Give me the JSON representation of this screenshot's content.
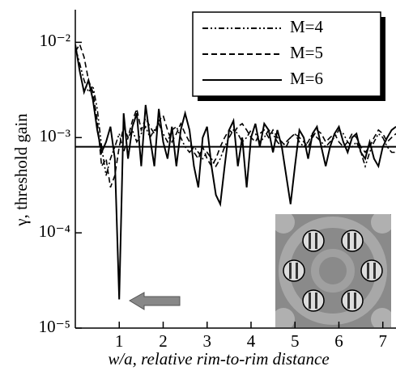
{
  "chart_data": {
    "type": "line",
    "x_label": "w/a, relative rim-to-rim distance",
    "y_label": "γ, threshold gain",
    "log_y": true,
    "xlim": [
      0,
      7.3
    ],
    "ylim": [
      1e-05,
      0.022
    ],
    "xticks": [
      1,
      2,
      3,
      4,
      5,
      6,
      7
    ],
    "yticks": [
      {
        "value": 1e-05,
        "label": "10⁻⁵"
      },
      {
        "value": 0.0001,
        "label": "10⁻⁴"
      },
      {
        "value": 0.001,
        "label": "10⁻³"
      },
      {
        "value": 0.01,
        "label": "10⁻²"
      }
    ],
    "threshold_line": 0.0008,
    "legend": "upper right",
    "x": [
      0,
      0.1,
      0.2,
      0.3,
      0.4,
      0.5,
      0.6,
      0.7,
      0.8,
      0.9,
      1.0,
      1.1,
      1.2,
      1.3,
      1.4,
      1.5,
      1.6,
      1.7,
      1.8,
      1.9,
      2.0,
      2.1,
      2.2,
      2.3,
      2.4,
      2.5,
      2.6,
      2.7,
      2.8,
      2.9,
      3.0,
      3.1,
      3.2,
      3.3,
      3.4,
      3.5,
      3.6,
      3.7,
      3.8,
      3.9,
      4.0,
      4.1,
      4.2,
      4.3,
      4.4,
      4.5,
      4.6,
      4.7,
      4.8,
      4.9,
      5.0,
      5.1,
      5.2,
      5.3,
      5.4,
      5.5,
      5.6,
      5.7,
      5.8,
      5.9,
      6.0,
      6.1,
      6.2,
      6.3,
      6.4,
      6.5,
      6.6,
      6.7,
      6.8,
      6.9,
      7.0,
      7.1,
      7.2,
      7.3
    ],
    "series": [
      {
        "name": "M=4",
        "color": "#000000",
        "linestyle": "dashdotdot",
        "values": [
          0.009,
          0.006,
          0.004,
          0.003,
          0.0035,
          0.002,
          0.0008,
          0.0004,
          0.0006,
          0.0008,
          0.0011,
          0.0007,
          0.001,
          0.0012,
          0.0009,
          0.0011,
          0.0013,
          0.001,
          0.0012,
          0.0014,
          0.0011,
          0.0009,
          0.0012,
          0.0013,
          0.001,
          0.0008,
          0.0007,
          0.0008,
          0.0007,
          0.0006,
          0.0007,
          0.0006,
          0.0005,
          0.0006,
          0.0008,
          0.001,
          0.0012,
          0.0011,
          0.0009,
          0.001,
          0.0012,
          0.0011,
          0.0009,
          0.001,
          0.0012,
          0.0011,
          0.0009,
          0.0008,
          0.0009,
          0.001,
          0.0011,
          0.0009,
          0.0008,
          0.0009,
          0.0011,
          0.001,
          0.0009,
          0.0008,
          0.0009,
          0.001,
          0.0012,
          0.0011,
          0.0009,
          0.0008,
          0.0009,
          0.0007,
          0.0005,
          0.0007,
          0.0009,
          0.0011,
          0.001,
          0.0008,
          0.0007,
          0.0007
        ]
      },
      {
        "name": "M=5",
        "color": "#000000",
        "linestyle": "dashed",
        "values": [
          0.008,
          0.0095,
          0.007,
          0.004,
          0.003,
          0.0015,
          0.0005,
          0.0006,
          0.0003,
          0.0004,
          0.0008,
          0.0013,
          0.001,
          0.0015,
          0.002,
          0.0012,
          0.0016,
          0.0013,
          0.0011,
          0.0015,
          0.0017,
          0.0012,
          0.0009,
          0.0011,
          0.0014,
          0.0011,
          0.0009,
          0.0007,
          0.0006,
          0.0008,
          0.0006,
          0.0005,
          0.0006,
          0.0008,
          0.001,
          0.0012,
          0.0011,
          0.0013,
          0.0014,
          0.0012,
          0.001,
          0.0009,
          0.0011,
          0.0012,
          0.001,
          0.0012,
          0.001,
          0.0009,
          0.0008,
          0.001,
          0.0011,
          0.001,
          0.0009,
          0.0008,
          0.001,
          0.0012,
          0.0011,
          0.0009,
          0.001,
          0.0011,
          0.0009,
          0.0008,
          0.0009,
          0.0011,
          0.001,
          0.0008,
          0.0007,
          0.0008,
          0.001,
          0.0012,
          0.0011,
          0.0009,
          0.001,
          0.0011
        ]
      },
      {
        "name": "M=6",
        "color": "#000000",
        "linestyle": "solid",
        "values": [
          0.0095,
          0.005,
          0.003,
          0.004,
          0.0025,
          0.0012,
          0.0007,
          0.0009,
          0.0013,
          0.0006,
          2e-05,
          0.0018,
          0.0006,
          0.0013,
          0.0018,
          0.0005,
          0.0022,
          0.001,
          0.0005,
          0.002,
          0.0009,
          0.0006,
          0.0013,
          0.0005,
          0.0012,
          0.0018,
          0.0012,
          0.0005,
          0.0003,
          0.001,
          0.0013,
          0.0005,
          0.00025,
          0.0002,
          0.0005,
          0.0012,
          0.0015,
          0.0005,
          0.001,
          0.0003,
          0.001,
          0.0014,
          0.0008,
          0.0014,
          0.0012,
          0.0007,
          0.0012,
          0.0008,
          0.0004,
          0.0002,
          0.0005,
          0.0012,
          0.001,
          0.0006,
          0.0011,
          0.0013,
          0.0008,
          0.0005,
          0.0008,
          0.0011,
          0.0013,
          0.0009,
          0.0007,
          0.001,
          0.0011,
          0.0007,
          0.0006,
          0.0009,
          0.0006,
          0.0005,
          0.0008,
          0.001,
          0.0012,
          0.0013
        ]
      }
    ]
  }
}
